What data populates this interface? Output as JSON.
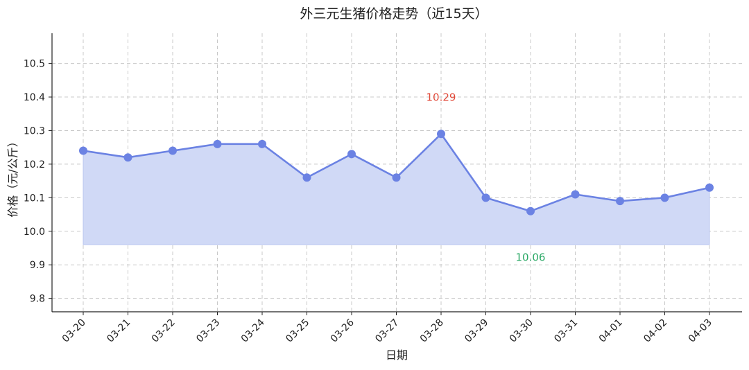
{
  "chart_data": {
    "type": "line",
    "title": "外三元生猪价格走势（近15天）",
    "xlabel": "日期",
    "ylabel": "价格（元/公斤）",
    "categories": [
      "03-20",
      "03-21",
      "03-22",
      "03-23",
      "03-24",
      "03-25",
      "03-26",
      "03-27",
      "03-28",
      "03-29",
      "03-30",
      "03-31",
      "04-01",
      "04-02",
      "04-03"
    ],
    "series": [
      {
        "values": [
          10.24,
          10.22,
          10.24,
          10.26,
          10.26,
          10.16,
          10.23,
          10.16,
          10.29,
          10.1,
          10.06,
          10.11,
          10.09,
          10.1,
          10.13
        ]
      }
    ],
    "area_baseline": 9.96,
    "ylim": [
      9.76,
      10.59
    ],
    "yticks": [
      9.8,
      9.9,
      10.0,
      10.1,
      10.2,
      10.3,
      10.4,
      10.5
    ],
    "ytick_labels": [
      "9.8",
      "9.9",
      "10.0",
      "10.1",
      "10.2",
      "10.3",
      "10.4",
      "10.5"
    ],
    "annotations": [
      {
        "category": "03-28",
        "text": "10.29",
        "color": "#e24b3b"
      },
      {
        "category": "03-30",
        "text": "10.06",
        "color": "#2aa865"
      }
    ],
    "grid": true,
    "colors": {
      "line": "#6b82e3",
      "area": "#d0d9f6",
      "grid": "#c8c8c8",
      "axis": "#222222"
    }
  }
}
